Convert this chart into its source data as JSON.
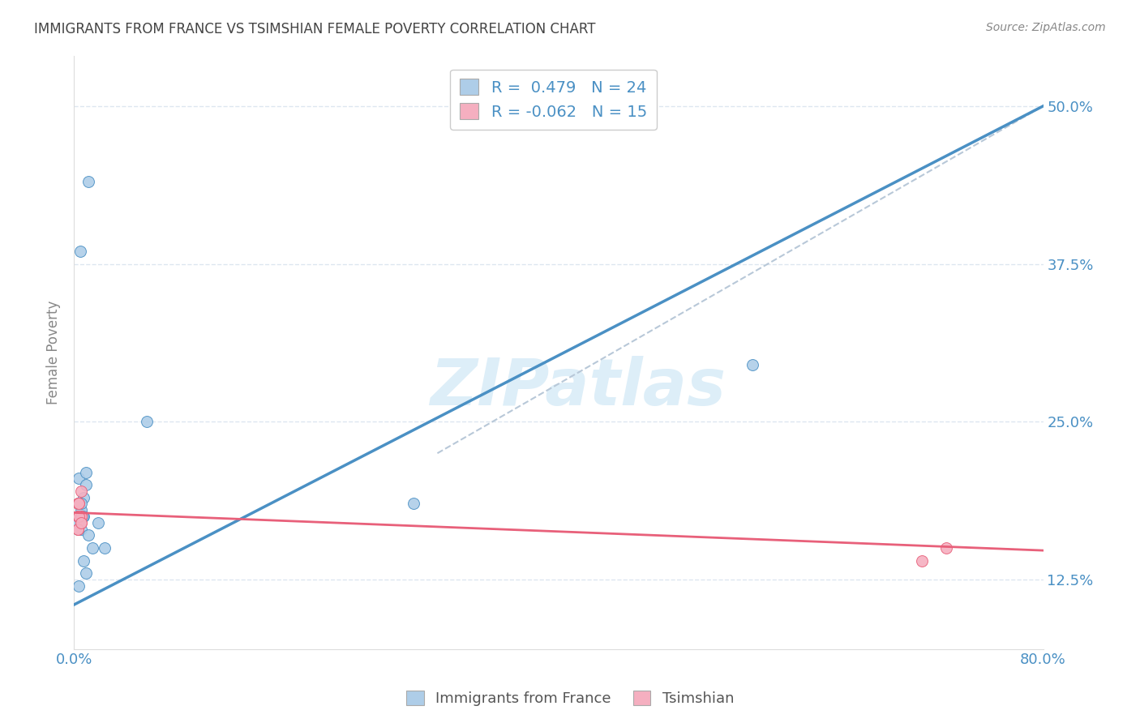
{
  "title": "IMMIGRANTS FROM FRANCE VS TSIMSHIAN FEMALE POVERTY CORRELATION CHART",
  "source": "Source: ZipAtlas.com",
  "ylabel": "Female Poverty",
  "xlim": [
    0.0,
    0.8
  ],
  "ylim": [
    0.07,
    0.54
  ],
  "xticks": [
    0.0,
    0.2,
    0.4,
    0.6,
    0.8
  ],
  "xtick_labels": [
    "0.0%",
    "",
    "",
    "",
    "80.0%"
  ],
  "ytick_labels": [
    "12.5%",
    "25.0%",
    "37.5%",
    "50.0%"
  ],
  "yticks": [
    0.125,
    0.25,
    0.375,
    0.5
  ],
  "blue_R": 0.479,
  "blue_N": 24,
  "pink_R": -0.062,
  "pink_N": 15,
  "blue_color": "#aecde8",
  "pink_color": "#f5afc0",
  "blue_line_color": "#4a90c4",
  "pink_line_color": "#e8607a",
  "dashed_line_color": "#b8c8d8",
  "grid_color": "#dde6f0",
  "background_color": "#ffffff",
  "watermark_text": "ZIPatlas",
  "watermark_color": "#ddeef8",
  "blue_scatter_x": [
    0.006,
    0.02,
    0.004,
    0.008,
    0.003,
    0.006,
    0.01,
    0.004,
    0.007,
    0.008,
    0.003,
    0.01,
    0.006,
    0.012,
    0.004,
    0.008,
    0.025,
    0.06,
    0.01,
    0.015,
    0.005,
    0.012,
    0.56,
    0.28
  ],
  "blue_scatter_y": [
    0.165,
    0.17,
    0.205,
    0.175,
    0.165,
    0.18,
    0.2,
    0.185,
    0.175,
    0.19,
    0.17,
    0.21,
    0.185,
    0.16,
    0.12,
    0.14,
    0.15,
    0.25,
    0.13,
    0.15,
    0.385,
    0.44,
    0.295,
    0.185
  ],
  "pink_scatter_x": [
    0.003,
    0.006,
    0.003,
    0.006,
    0.004,
    0.004,
    0.006,
    0.003,
    0.004,
    0.006,
    0.003,
    0.004,
    0.006,
    0.72,
    0.7
  ],
  "pink_scatter_y": [
    0.185,
    0.195,
    0.175,
    0.175,
    0.175,
    0.185,
    0.175,
    0.165,
    0.185,
    0.17,
    0.165,
    0.175,
    0.17,
    0.15,
    0.14
  ],
  "blue_line_x0": 0.0,
  "blue_line_y0": 0.105,
  "blue_line_x1": 0.8,
  "blue_line_y1": 0.5,
  "pink_line_x0": 0.0,
  "pink_line_y0": 0.178,
  "pink_line_x1": 0.8,
  "pink_line_y1": 0.148,
  "dash_line_x0": 0.3,
  "dash_line_y0": 0.225,
  "dash_line_x1": 0.8,
  "dash_line_y1": 0.5,
  "blue_marker_size": 100,
  "pink_marker_size": 100,
  "legend_label_blue": "Immigrants from France",
  "legend_label_pink": "Tsimshian"
}
